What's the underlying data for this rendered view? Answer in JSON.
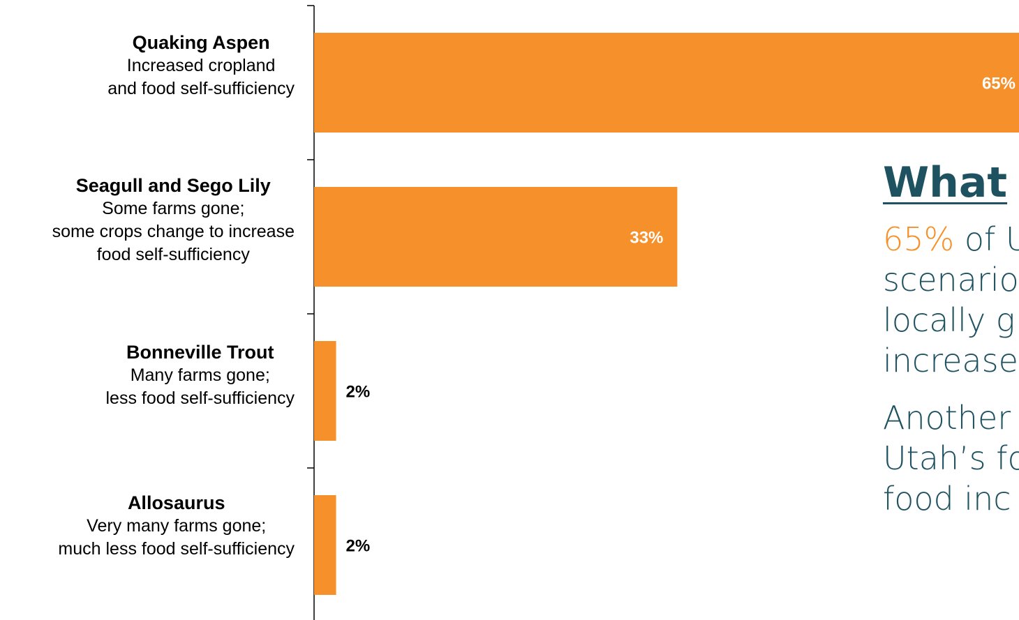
{
  "chart_data": {
    "type": "bar",
    "orientation": "horizontal",
    "categories": [
      {
        "name": "Quaking Aspen",
        "desc": [
          "Increased cropland",
          "and food self-sufficiency"
        ]
      },
      {
        "name": "Seagull and Sego Lily",
        "desc": [
          "Some farms gone;",
          "some crops change to increase",
          "food self-sufficiency"
        ]
      },
      {
        "name": "Bonneville Trout",
        "desc": [
          "Many farms gone;",
          "less food self-sufficiency"
        ]
      },
      {
        "name": "Allosaurus",
        "desc": [
          "Very many farms gone;",
          "much less food self-sufficiency"
        ]
      }
    ],
    "values": [
      65,
      33,
      2,
      2
    ],
    "value_labels": [
      "65%",
      "33%",
      "2%",
      "2%"
    ],
    "bar_color": "#f5902a",
    "grid": false
  },
  "side_panel": {
    "heading": "What",
    "para1_highlight": "65%",
    "para1_rest": " of U",
    "para1_lines": [
      "scenario",
      "locally g",
      "increase"
    ],
    "para2_lines": [
      "Another",
      "Utah’s fo",
      "food inc"
    ],
    "text_color": "#1e5260",
    "accent_color": "#f5902a"
  }
}
